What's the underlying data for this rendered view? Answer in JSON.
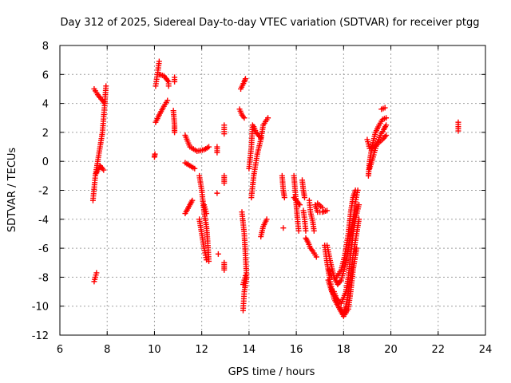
{
  "chart_data": {
    "type": "scatter",
    "title": "Day 312 of 2025, Sidereal Day-to-day VTEC variation (SDTVAR) for receiver ptgg",
    "xlabel": "GPS time / hours",
    "ylabel": "SDTVAR / TECUs",
    "xlim": [
      6,
      24
    ],
    "ylim": [
      -12,
      8
    ],
    "xticks": [
      6,
      8,
      10,
      12,
      14,
      16,
      18,
      20,
      22,
      24
    ],
    "yticks": [
      -12,
      -10,
      -8,
      -6,
      -4,
      -2,
      0,
      2,
      4,
      6,
      8
    ],
    "grid": true,
    "marker": "+",
    "color": "#ff0000",
    "series": [
      {
        "name": "SDTVAR",
        "segments": [
          [
            [
              7.4,
              -2.7
            ],
            [
              7.5,
              -1.0
            ],
            [
              7.6,
              0.0
            ],
            [
              7.7,
              1.0
            ],
            [
              7.8,
              2.0
            ],
            [
              7.9,
              4.0
            ],
            [
              7.95,
              5.2
            ]
          ],
          [
            [
              7.45,
              5.0
            ],
            [
              7.6,
              4.6
            ],
            [
              7.8,
              4.2
            ],
            [
              7.9,
              4.0
            ]
          ],
          [
            [
              7.55,
              -0.8
            ],
            [
              7.7,
              -0.3
            ],
            [
              7.85,
              -0.6
            ]
          ],
          [
            [
              7.45,
              -8.3
            ],
            [
              7.55,
              -7.7
            ]
          ],
          [
            [
              10.0,
              0.3
            ],
            [
              10.02,
              0.5
            ]
          ],
          [
            [
              10.05,
              2.7
            ],
            [
              10.2,
              3.2
            ],
            [
              10.4,
              3.8
            ],
            [
              10.55,
              4.2
            ]
          ],
          [
            [
              10.05,
              5.2
            ],
            [
              10.15,
              6.3
            ],
            [
              10.2,
              6.9
            ]
          ],
          [
            [
              10.2,
              6.0
            ],
            [
              10.4,
              5.9
            ],
            [
              10.6,
              5.5
            ],
            [
              10.6,
              5.2
            ]
          ],
          [
            [
              10.8,
              3.5
            ],
            [
              10.85,
              2.5
            ],
            [
              10.85,
              2.0
            ]
          ],
          [
            [
              10.85,
              5.8
            ],
            [
              10.85,
              5.5
            ]
          ],
          [
            [
              11.3,
              1.8
            ],
            [
              11.5,
              1.0
            ],
            [
              11.8,
              0.7
            ],
            [
              12.1,
              0.8
            ],
            [
              12.3,
              1.0
            ]
          ],
          [
            [
              11.3,
              -0.1
            ],
            [
              11.5,
              -0.3
            ],
            [
              11.7,
              -0.5
            ]
          ],
          [
            [
              11.3,
              -3.6
            ],
            [
              11.5,
              -3.0
            ],
            [
              11.6,
              -2.7
            ]
          ],
          [
            [
              11.9,
              -1.0
            ],
            [
              12.0,
              -2.0
            ],
            [
              12.1,
              -3.5
            ],
            [
              12.2,
              -4.5
            ],
            [
              12.25,
              -5.5
            ],
            [
              12.3,
              -6.9
            ]
          ],
          [
            [
              11.9,
              -4.0
            ],
            [
              12.0,
              -5.0
            ],
            [
              12.1,
              -6.0
            ],
            [
              12.2,
              -6.8
            ]
          ],
          [
            [
              12.1,
              -3.0
            ],
            [
              12.2,
              -3.6
            ]
          ],
          [
            [
              12.65,
              1.0
            ],
            [
              12.65,
              0.6
            ]
          ],
          [
            [
              12.65,
              -2.2
            ]
          ],
          [
            [
              12.7,
              -6.4
            ]
          ],
          [
            [
              12.95,
              2.5
            ],
            [
              12.95,
              1.9
            ]
          ],
          [
            [
              12.95,
              -1.0
            ],
            [
              12.95,
              -1.5
            ]
          ],
          [
            [
              12.95,
              -7.0
            ],
            [
              12.95,
              -7.5
            ]
          ],
          [
            [
              13.6,
              3.6
            ],
            [
              13.7,
              3.2
            ],
            [
              13.8,
              3.0
            ]
          ],
          [
            [
              13.65,
              5.0
            ],
            [
              13.8,
              5.5
            ],
            [
              13.85,
              5.7
            ]
          ],
          [
            [
              13.7,
              -3.5
            ],
            [
              13.8,
              -5.0
            ],
            [
              13.85,
              -6.5
            ],
            [
              13.9,
              -8.0
            ],
            [
              13.8,
              -9.0
            ],
            [
              13.75,
              -10.3
            ]
          ],
          [
            [
              13.75,
              -8.5
            ],
            [
              13.85,
              -7.9
            ]
          ],
          [
            [
              14.0,
              -0.5
            ],
            [
              14.1,
              1.0
            ],
            [
              14.15,
              2.5
            ]
          ],
          [
            [
              14.1,
              -2.5
            ],
            [
              14.2,
              -1.0
            ],
            [
              14.35,
              0.5
            ],
            [
              14.5,
              1.5
            ],
            [
              14.6,
              2.5
            ],
            [
              14.8,
              3.0
            ]
          ],
          [
            [
              14.2,
              2.4
            ],
            [
              14.3,
              2.0
            ],
            [
              14.5,
              1.6
            ]
          ],
          [
            [
              14.5,
              -5.2
            ],
            [
              14.6,
              -4.5
            ],
            [
              14.75,
              -4.0
            ]
          ],
          [
            [
              15.4,
              -1.0
            ],
            [
              15.45,
              -2.0
            ],
            [
              15.5,
              -2.5
            ]
          ],
          [
            [
              15.45,
              -4.6
            ]
          ],
          [
            [
              15.9,
              -1.0
            ],
            [
              15.95,
              -2.0
            ],
            [
              16.0,
              -3.0
            ],
            [
              16.05,
              -4.0
            ],
            [
              16.1,
              -4.8
            ]
          ],
          [
            [
              15.9,
              -2.5
            ],
            [
              16.0,
              -2.7
            ],
            [
              16.15,
              -3.0
            ]
          ],
          [
            [
              16.25,
              -1.3
            ],
            [
              16.3,
              -2.0
            ],
            [
              16.35,
              -2.5
            ]
          ],
          [
            [
              16.3,
              -3.4
            ],
            [
              16.35,
              -4.0
            ],
            [
              16.4,
              -4.8
            ]
          ],
          [
            [
              16.4,
              -5.3
            ],
            [
              16.5,
              -5.6
            ],
            [
              16.6,
              -6.0
            ],
            [
              16.7,
              -6.2
            ],
            [
              16.85,
              -6.6
            ]
          ],
          [
            [
              16.55,
              -2.7
            ],
            [
              16.6,
              -3.5
            ],
            [
              16.7,
              -4.2
            ],
            [
              16.75,
              -4.8
            ]
          ],
          [
            [
              16.8,
              -3.0
            ],
            [
              16.9,
              -3.5
            ],
            [
              17.1,
              -3.5
            ],
            [
              17.3,
              -3.4
            ]
          ],
          [
            [
              16.9,
              -2.9
            ],
            [
              17.1,
              -3.2
            ]
          ],
          [
            [
              17.2,
              -5.8
            ],
            [
              17.3,
              -7.0
            ],
            [
              17.4,
              -8.0
            ],
            [
              17.5,
              -8.8
            ],
            [
              17.6,
              -9.5
            ],
            [
              17.8,
              -10.1
            ],
            [
              18.0,
              -10.7
            ],
            [
              18.2,
              -10.2
            ],
            [
              18.3,
              -9.0
            ],
            [
              18.4,
              -7.5
            ],
            [
              18.5,
              -6.5
            ],
            [
              18.55,
              -6.0
            ]
          ],
          [
            [
              17.3,
              -5.8
            ],
            [
              17.45,
              -7.0
            ],
            [
              17.6,
              -8.0
            ],
            [
              17.75,
              -8.5
            ],
            [
              17.9,
              -8.2
            ],
            [
              18.1,
              -7.0
            ],
            [
              18.25,
              -5.5
            ],
            [
              18.35,
              -4.5
            ],
            [
              18.45,
              -3.5
            ],
            [
              18.5,
              -2.8
            ],
            [
              18.6,
              -2.0
            ]
          ],
          [
            [
              17.35,
              -8.2
            ],
            [
              17.5,
              -9.0
            ],
            [
              17.7,
              -9.5
            ],
            [
              17.9,
              -9.8
            ],
            [
              18.1,
              -9.0
            ],
            [
              18.2,
              -8.0
            ],
            [
              18.3,
              -6.5
            ],
            [
              18.4,
              -5.0
            ],
            [
              18.5,
              -4.0
            ],
            [
              18.65,
              -3.0
            ]
          ],
          [
            [
              17.6,
              -9.0
            ],
            [
              17.8,
              -10.0
            ],
            [
              18.0,
              -10.5
            ],
            [
              18.1,
              -10.0
            ],
            [
              18.25,
              -8.5
            ],
            [
              18.4,
              -6.5
            ],
            [
              18.55,
              -5.0
            ],
            [
              18.65,
              -4.0
            ]
          ],
          [
            [
              17.4,
              -7.5
            ],
            [
              17.5,
              -8.0
            ],
            [
              17.7,
              -8.0
            ],
            [
              17.9,
              -7.5
            ],
            [
              18.05,
              -6.5
            ],
            [
              18.2,
              -5.0
            ],
            [
              18.3,
              -3.5
            ],
            [
              18.4,
              -2.5
            ],
            [
              18.5,
              -2.0
            ]
          ],
          [
            [
              19.05,
              -1.0
            ],
            [
              19.1,
              0.0
            ],
            [
              19.2,
              1.0
            ],
            [
              19.35,
              2.0
            ],
            [
              19.5,
              2.5
            ],
            [
              19.65,
              2.9
            ],
            [
              19.8,
              3.0
            ]
          ],
          [
            [
              19.1,
              -0.5
            ],
            [
              19.25,
              0.3
            ],
            [
              19.4,
              1.2
            ],
            [
              19.55,
              1.8
            ],
            [
              19.7,
              2.2
            ],
            [
              19.8,
              2.5
            ]
          ],
          [
            [
              19.0,
              1.5
            ],
            [
              19.1,
              0.9
            ],
            [
              19.3,
              1.0
            ],
            [
              19.5,
              1.3
            ],
            [
              19.7,
              1.6
            ],
            [
              19.8,
              1.8
            ]
          ],
          [
            [
              19.6,
              3.6
            ],
            [
              19.75,
              3.7
            ]
          ],
          [
            [
              22.85,
              2.7
            ],
            [
              22.85,
              2.1
            ]
          ]
        ]
      }
    ]
  }
}
